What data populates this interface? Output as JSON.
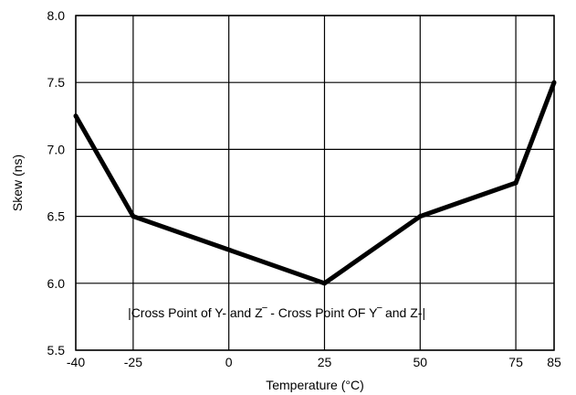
{
  "chart_data": {
    "type": "line",
    "title": "",
    "xlabel": "Temperature (°C)",
    "ylabel": "Skew (ns)",
    "xlim": [
      -40,
      85
    ],
    "ylim": [
      5.5,
      8.0
    ],
    "grid": true,
    "x_ticks": [
      -40,
      -25,
      0,
      25,
      50,
      75,
      85
    ],
    "x_tick_labels": [
      "-40",
      "-25",
      "0",
      "25",
      "50",
      "75",
      "85"
    ],
    "y_ticks": [
      5.5,
      6.0,
      6.5,
      7.0,
      7.5,
      8.0
    ],
    "y_tick_labels": [
      "5.5",
      "6.0",
      "6.5",
      "7.0",
      "7.5",
      "8.0"
    ],
    "series": [
      {
        "x": [
          -40,
          -25,
          25,
          50,
          75,
          85
        ],
        "y": [
          7.25,
          6.5,
          6.0,
          6.5,
          6.75,
          7.5
        ]
      }
    ],
    "annotation": {
      "text": "|Cross Point of Y- and Z‾ - Cross Point OF Y‾ and Z-|",
      "x": 12.5,
      "y": 5.78
    },
    "colors": {
      "line": "#000000",
      "grid": "#000000"
    }
  }
}
